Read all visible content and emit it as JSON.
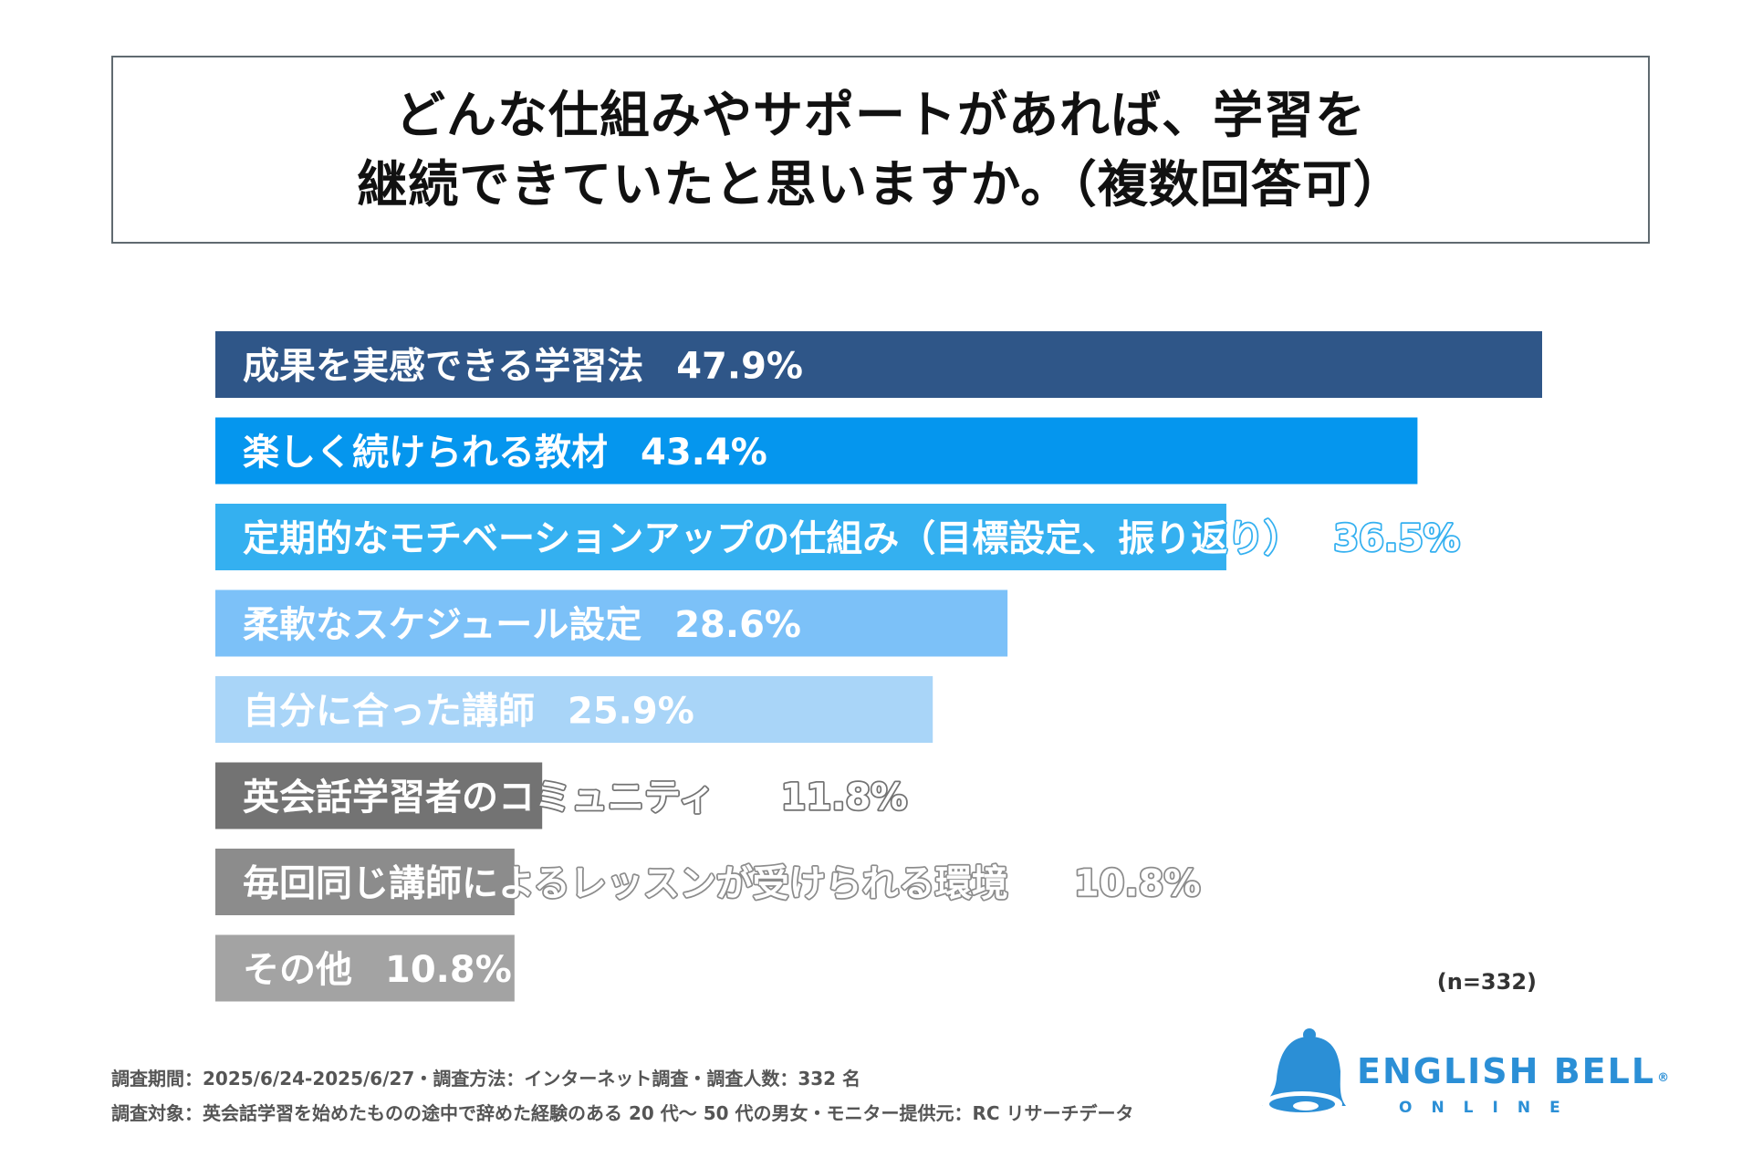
{
  "title_lines": [
    "どんな仕組みやサポートがあれば、学習を",
    "継続できていたと思いますか。（複数回答可）"
  ],
  "chart_data": {
    "type": "bar",
    "orientation": "horizontal",
    "title": "どんな仕組みやサポートがあれば、学習を継続できていたと思いますか。（複数回答可）",
    "unit": "%",
    "xlim": [
      0,
      47.9
    ],
    "grid": false,
    "legend": "none",
    "categories": [
      "成果を実感できる学習法",
      "楽しく続けられる教材",
      "定期的なモチベーションアップの仕組み（目標設定、振り返り）",
      "柔軟なスケジュール設定",
      "自分に合った講師",
      "英会話学習者のコミュニティ",
      "毎回同じ講師によるレッスンが受けられる環境",
      "その他"
    ],
    "values": [
      47.9,
      43.4,
      36.5,
      28.6,
      25.9,
      11.8,
      10.8,
      10.8
    ],
    "value_labels": [
      "47.9%",
      "43.4%",
      "36.5%",
      "28.6%",
      "25.9%",
      "11.8%",
      "10.8%",
      "10.8%"
    ],
    "colors": [
      "#2f5688",
      "#0596ee",
      "#34b0f0",
      "#7cc1f8",
      "#a9d5f8",
      "#737373",
      "#8c8c8c",
      "#a3a3a3"
    ]
  },
  "sample_note": "(n=332)",
  "footnotes": [
    "調査期間：2025/6/24-2025/6/27・調査方法：インターネット調査・調査人数：332 名",
    "調査対象：英会話学習を始めたものの途中で辞めた経験のある 20 代～ 50 代の男女・モニター提供元：RC リサーチデータ"
  ],
  "logo": {
    "name": "ENGLISH BELL",
    "registered": "®",
    "sub": "ONLINE",
    "icon": "bell-icon",
    "color": "#2b8fd6"
  }
}
